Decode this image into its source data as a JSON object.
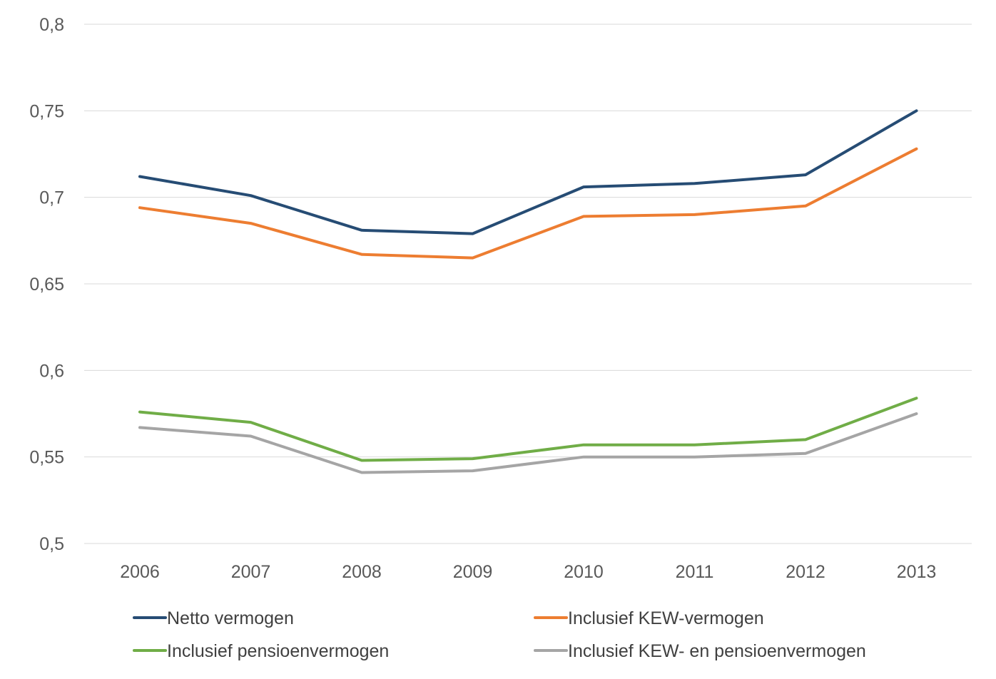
{
  "chart_data": {
    "type": "line",
    "title": "",
    "xlabel": "",
    "ylabel": "",
    "categories": [
      "2006",
      "2007",
      "2008",
      "2009",
      "2010",
      "2011",
      "2012",
      "2013"
    ],
    "ylim": [
      0.5,
      0.8
    ],
    "yticks": [
      0.5,
      0.55,
      0.6,
      0.65,
      0.7,
      0.75,
      0.8
    ],
    "ytick_labels": [
      "0,5",
      "0,55",
      "0,6",
      "0,65",
      "0,7",
      "0,75",
      "0,8"
    ],
    "grid": true,
    "legend_position": "bottom",
    "series": [
      {
        "name": "Netto vermogen",
        "color": "#264c74",
        "values": [
          0.712,
          0.701,
          0.681,
          0.679,
          0.706,
          0.708,
          0.713,
          0.75
        ]
      },
      {
        "name": "Inclusief KEW-vermogen",
        "color": "#ed7d31",
        "values": [
          0.694,
          0.685,
          0.667,
          0.665,
          0.689,
          0.69,
          0.695,
          0.728
        ]
      },
      {
        "name": "Inclusief pensioenvermogen",
        "color": "#70ad47",
        "values": [
          0.576,
          0.57,
          0.548,
          0.549,
          0.557,
          0.557,
          0.56,
          0.584
        ]
      },
      {
        "name": "Inclusief KEW- en pensioenvermogen",
        "color": "#a5a5a5",
        "values": [
          0.567,
          0.562,
          0.541,
          0.542,
          0.55,
          0.55,
          0.552,
          0.575
        ]
      }
    ]
  }
}
